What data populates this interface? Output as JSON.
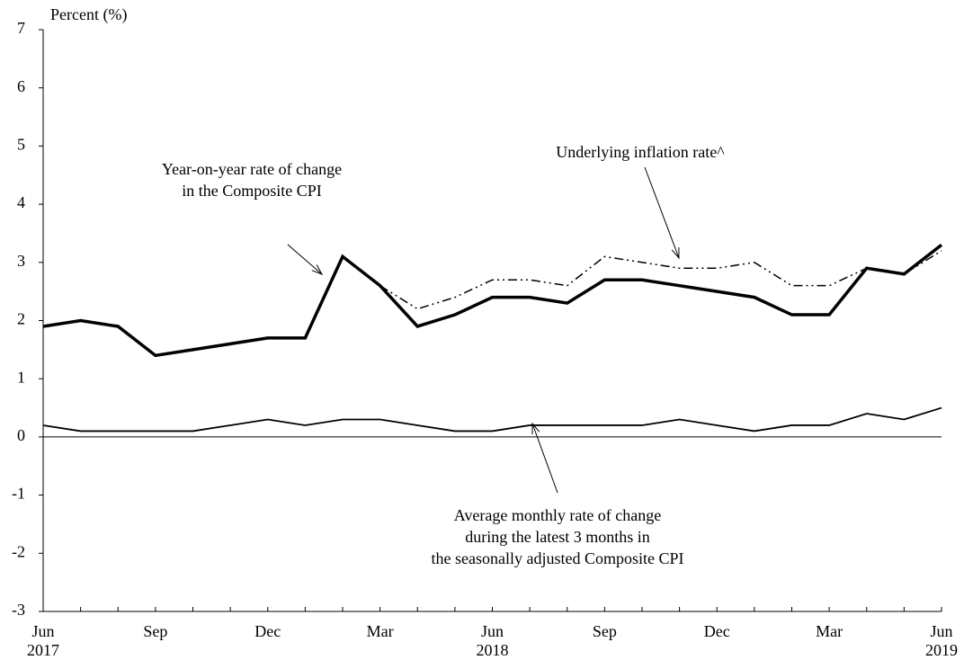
{
  "chart_data": {
    "type": "line",
    "y_axis_label": "Percent (%)",
    "categories": [
      "Jun 2017",
      null,
      null,
      "Sep",
      null,
      null,
      "Dec",
      null,
      null,
      "Mar",
      null,
      null,
      "Jun 2018",
      null,
      null,
      "Sep",
      null,
      null,
      "Dec",
      null,
      null,
      "Mar",
      null,
      null,
      "Jun 2019"
    ],
    "series": [
      {
        "name": "Year-on-year rate of change in the Composite CPI",
        "color": "#000000",
        "values": [
          1.9,
          2.0,
          1.9,
          1.4,
          1.5,
          1.6,
          1.7,
          1.7,
          3.1,
          2.6,
          1.9,
          2.1,
          2.4,
          2.4,
          2.3,
          2.7,
          2.7,
          2.6,
          2.5,
          2.4,
          2.1,
          2.1,
          2.9,
          2.8,
          3.3
        ]
      },
      {
        "name": "Underlying inflation rate^",
        "color": "#000000",
        "values": [
          null,
          null,
          null,
          null,
          null,
          null,
          null,
          null,
          null,
          2.6,
          2.2,
          2.4,
          2.7,
          2.7,
          2.6,
          3.1,
          3.0,
          2.9,
          2.9,
          3.0,
          2.6,
          2.6,
          2.9,
          2.8,
          3.2
        ]
      },
      {
        "name": "Average monthly rate of change during the latest 3 months in the seasonally adjusted Composite CPI",
        "color": "#000000",
        "values": [
          0.2,
          0.1,
          0.1,
          0.1,
          0.1,
          0.2,
          0.3,
          0.2,
          0.3,
          0.3,
          0.2,
          0.1,
          0.1,
          0.2,
          0.2,
          0.2,
          0.2,
          0.3,
          0.2,
          0.1,
          0.2,
          0.2,
          0.4,
          0.3,
          0.5
        ]
      }
    ],
    "annotations": [
      {
        "lines": [
          "Year-on-year rate of change",
          "in the Composite CPI"
        ]
      },
      {
        "lines": [
          "Underlying inflation rate^"
        ]
      },
      {
        "lines": [
          "Average monthly rate of change",
          "during the latest 3 months in",
          "the seasonally adjusted Composite CPI"
        ]
      }
    ],
    "ylim": [
      -3,
      7
    ],
    "yticks": [
      -3,
      -2,
      -1,
      0,
      1,
      2,
      3,
      4,
      5,
      6,
      7
    ]
  }
}
